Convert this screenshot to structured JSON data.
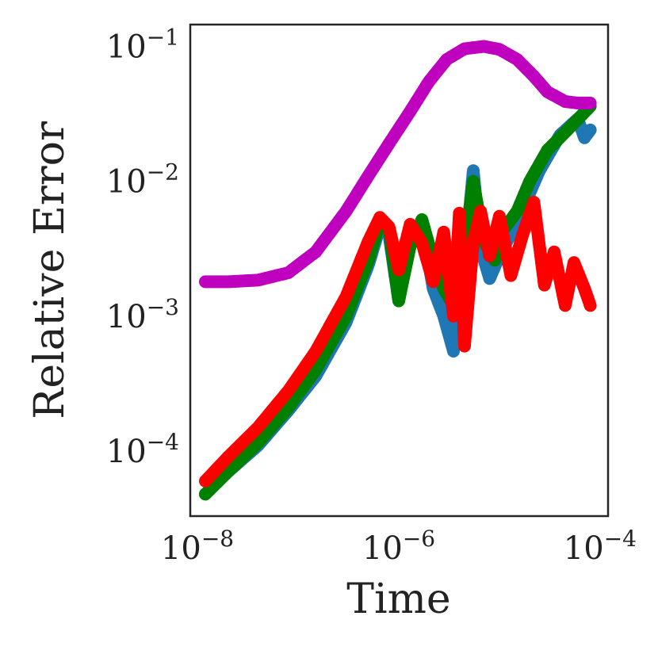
{
  "chart_data": {
    "type": "scatter",
    "title": "",
    "xlabel": "Time",
    "ylabel": "Relative Error",
    "xscale": "log",
    "yscale": "log",
    "xlim": [
      8.5e-09,
      0.00012
    ],
    "ylim": [
      3.3e-05,
      0.145
    ],
    "grid": false,
    "legend": "none",
    "x_ticks": [
      {
        "base": "10",
        "exp": "−8",
        "value": 1e-08
      },
      {
        "base": "10",
        "exp": "−6",
        "value": 1e-06
      },
      {
        "base": "10",
        "exp": "−4",
        "value": 0.0001
      }
    ],
    "y_ticks": [
      {
        "base": "10",
        "exp": "−4",
        "value": 0.0001
      },
      {
        "base": "10",
        "exp": "−3",
        "value": 0.001
      },
      {
        "base": "10",
        "exp": "−2",
        "value": 0.01
      },
      {
        "base": "10",
        "exp": "−1",
        "value": 0.1
      }
    ],
    "series": [
      {
        "color": "#1f77b4",
        "points": [
          [
            1.2e-08,
            4.8e-05
          ],
          [
            2e-08,
            7e-05
          ],
          [
            4e-08,
            0.00011
          ],
          [
            8e-08,
            0.0002
          ],
          [
            1.5e-07,
            0.00036
          ],
          [
            3e-07,
            0.0009
          ],
          [
            5e-07,
            0.0024
          ],
          [
            6.5e-07,
            0.0046
          ],
          [
            8e-07,
            0.004
          ],
          [
            1e-06,
            0.0013
          ],
          [
            1.3e-06,
            0.0035
          ],
          [
            1.7e-06,
            0.0048
          ],
          [
            2.2e-06,
            0.0016
          ],
          [
            2.8e-06,
            0.001
          ],
          [
            3.5e-06,
            0.00055
          ],
          [
            4.5e-06,
            0.0024
          ],
          [
            5.5e-06,
            0.012
          ],
          [
            6.5e-06,
            0.0032
          ],
          [
            8e-06,
            0.0019
          ],
          [
            1e-05,
            0.0028
          ],
          [
            1.5e-05,
            0.005
          ],
          [
            2.5e-05,
            0.012
          ],
          [
            4e-05,
            0.022
          ],
          [
            6e-05,
            0.029
          ],
          [
            7e-05,
            0.021
          ],
          [
            8e-05,
            0.024
          ]
        ]
      },
      {
        "color": "#008000",
        "points": [
          [
            1.2e-08,
            4.8e-05
          ],
          [
            2e-08,
            7e-05
          ],
          [
            4e-08,
            0.000115
          ],
          [
            8e-08,
            0.00021
          ],
          [
            1.5e-07,
            0.0004
          ],
          [
            3e-07,
            0.001
          ],
          [
            5e-07,
            0.0026
          ],
          [
            6.5e-07,
            0.005
          ],
          [
            8e-07,
            0.0045
          ],
          [
            1e-06,
            0.0013
          ],
          [
            1.3e-06,
            0.0033
          ],
          [
            1.7e-06,
            0.0052
          ],
          [
            2.2e-06,
            0.0026
          ],
          [
            2.8e-06,
            0.0016
          ],
          [
            3.5e-06,
            0.0012
          ],
          [
            4.5e-06,
            0.0032
          ],
          [
            5.5e-06,
            0.01
          ],
          [
            7e-06,
            0.0036
          ],
          [
            9e-06,
            0.0026
          ],
          [
            1.1e-05,
            0.0044
          ],
          [
            1.5e-05,
            0.006
          ],
          [
            2e-05,
            0.01
          ],
          [
            3e-05,
            0.017
          ],
          [
            5e-05,
            0.025
          ],
          [
            8e-05,
            0.036
          ]
        ]
      },
      {
        "color": "#ff0000",
        "points": [
          [
            1.2e-08,
            6e-05
          ],
          [
            2e-08,
            9e-05
          ],
          [
            4e-08,
            0.00015
          ],
          [
            8e-08,
            0.00028
          ],
          [
            1.5e-07,
            0.00055
          ],
          [
            3e-07,
            0.0014
          ],
          [
            5e-07,
            0.0036
          ],
          [
            6.5e-07,
            0.0054
          ],
          [
            8e-07,
            0.0046
          ],
          [
            1e-06,
            0.0022
          ],
          [
            1.3e-06,
            0.0048
          ],
          [
            1.7e-06,
            0.0035
          ],
          [
            2.2e-06,
            0.0018
          ],
          [
            2.8e-06,
            0.0042
          ],
          [
            3.5e-06,
            0.001
          ],
          [
            4e-06,
            0.0058
          ],
          [
            4.5e-06,
            0.0006
          ],
          [
            5.5e-06,
            0.0035
          ],
          [
            6.5e-06,
            0.006
          ],
          [
            8e-06,
            0.0028
          ],
          [
            1e-05,
            0.0055
          ],
          [
            1.3e-05,
            0.002
          ],
          [
            1.7e-05,
            0.004
          ],
          [
            2.2e-05,
            0.007
          ],
          [
            2.8e-05,
            0.0017
          ],
          [
            3.5e-05,
            0.003
          ],
          [
            4.5e-05,
            0.0012
          ],
          [
            5.5e-05,
            0.0025
          ],
          [
            7e-05,
            0.0016
          ],
          [
            8e-05,
            0.0012
          ]
        ]
      },
      {
        "color": "#bf00bf",
        "points": [
          [
            1.2e-08,
            0.0018
          ],
          [
            2e-08,
            0.0018
          ],
          [
            4e-08,
            0.00185
          ],
          [
            8e-08,
            0.0021
          ],
          [
            1.5e-07,
            0.003
          ],
          [
            3e-07,
            0.006
          ],
          [
            5e-07,
            0.011
          ],
          [
            8e-07,
            0.019
          ],
          [
            1.3e-06,
            0.033
          ],
          [
            2e-06,
            0.055
          ],
          [
            3e-06,
            0.08
          ],
          [
            4.5e-06,
            0.096
          ],
          [
            7e-06,
            0.1
          ],
          [
            1e-05,
            0.095
          ],
          [
            1.5e-05,
            0.08
          ],
          [
            2.2e-05,
            0.06
          ],
          [
            3e-05,
            0.046
          ],
          [
            4.5e-05,
            0.039
          ],
          [
            6e-05,
            0.038
          ],
          [
            8e-05,
            0.038
          ]
        ]
      }
    ]
  }
}
